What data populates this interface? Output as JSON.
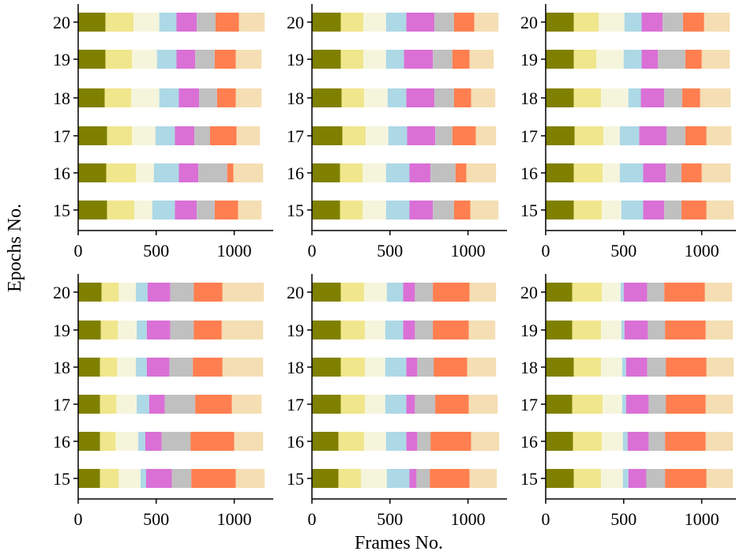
{
  "figure": {
    "xlabel": "Frames No.",
    "ylabel": "Epochs No."
  },
  "segment_colors": [
    "#808000",
    "#f0e68c",
    "#f5f5dc",
    "#add8e6",
    "#da70d6",
    "#c0c0c0",
    "#ff7f50",
    "#f5deb3"
  ],
  "chart_data": [
    {
      "type": "bar",
      "orientation": "horizontal",
      "stacked": true,
      "categories": [
        "15",
        "16",
        "17",
        "18",
        "19",
        "20"
      ],
      "xlim": [
        0,
        1250
      ],
      "xticks": [
        "0",
        "500",
        "1000"
      ],
      "segments": [
        [
          185,
          175,
          115,
          145,
          140,
          115,
          150,
          150
        ],
        [
          180,
          190,
          115,
          160,
          125,
          185,
          40,
          190
        ],
        [
          185,
          160,
          150,
          125,
          125,
          100,
          170,
          150
        ],
        [
          170,
          170,
          180,
          125,
          130,
          115,
          120,
          165
        ],
        [
          175,
          170,
          160,
          125,
          120,
          125,
          135,
          165
        ],
        [
          175,
          180,
          165,
          110,
          130,
          120,
          150,
          165
        ]
      ]
    },
    {
      "type": "bar",
      "orientation": "horizontal",
      "stacked": true,
      "categories": [
        "15",
        "16",
        "17",
        "18",
        "19",
        "20"
      ],
      "xlim": [
        0,
        1250
      ],
      "xticks": [
        "0",
        "500",
        "1000"
      ],
      "segments": [
        [
          180,
          145,
          150,
          150,
          150,
          135,
          105,
          180
        ],
        [
          180,
          145,
          150,
          150,
          135,
          160,
          70,
          190
        ],
        [
          195,
          150,
          145,
          120,
          180,
          110,
          150,
          130
        ],
        [
          190,
          145,
          150,
          120,
          180,
          125,
          110,
          155
        ],
        [
          185,
          145,
          145,
          115,
          185,
          125,
          110,
          155
        ],
        [
          185,
          145,
          145,
          130,
          180,
          125,
          130,
          155
        ]
      ]
    },
    {
      "type": "bar",
      "orientation": "horizontal",
      "stacked": true,
      "categories": [
        "15",
        "16",
        "17",
        "18",
        "19",
        "20"
      ],
      "xlim": [
        0,
        1250
      ],
      "xticks": [
        "0",
        "500",
        "1000"
      ],
      "segments": [
        [
          180,
          180,
          125,
          140,
          135,
          110,
          160,
          175
        ],
        [
          180,
          185,
          110,
          150,
          145,
          100,
          130,
          185
        ],
        [
          185,
          185,
          105,
          125,
          175,
          120,
          135,
          160
        ],
        [
          180,
          175,
          175,
          80,
          150,
          115,
          115,
          195
        ],
        [
          180,
          145,
          175,
          115,
          105,
          175,
          105,
          180
        ],
        [
          180,
          160,
          165,
          110,
          135,
          130,
          135,
          165
        ]
      ]
    },
    {
      "type": "bar",
      "orientation": "horizontal",
      "stacked": true,
      "categories": [
        "15",
        "16",
        "17",
        "18",
        "19",
        "20"
      ],
      "xlim": [
        0,
        1250
      ],
      "xticks": [
        "0",
        "500",
        "1000"
      ],
      "segments": [
        [
          140,
          120,
          140,
          35,
          165,
          125,
          285,
          185
        ],
        [
          140,
          100,
          145,
          45,
          105,
          185,
          280,
          185
        ],
        [
          140,
          105,
          130,
          80,
          100,
          195,
          235,
          190
        ],
        [
          140,
          110,
          120,
          70,
          145,
          150,
          190,
          260
        ],
        [
          145,
          110,
          120,
          65,
          150,
          150,
          180,
          265
        ],
        [
          150,
          110,
          110,
          75,
          145,
          150,
          185,
          265
        ]
      ]
    },
    {
      "type": "bar",
      "orientation": "horizontal",
      "stacked": true,
      "categories": [
        "15",
        "16",
        "17",
        "18",
        "19",
        "20"
      ],
      "xlim": [
        0,
        1250
      ],
      "xticks": [
        "0",
        "500",
        "1000"
      ],
      "segments": [
        [
          170,
          145,
          165,
          145,
          45,
          85,
          255,
          175
        ],
        [
          170,
          165,
          140,
          130,
          70,
          85,
          260,
          180
        ],
        [
          185,
          155,
          130,
          135,
          55,
          130,
          215,
          185
        ],
        [
          185,
          155,
          130,
          135,
          70,
          105,
          215,
          185
        ],
        [
          185,
          155,
          130,
          115,
          75,
          115,
          230,
          170
        ],
        [
          185,
          150,
          145,
          105,
          75,
          115,
          235,
          170
        ]
      ]
    },
    {
      "type": "bar",
      "orientation": "horizontal",
      "stacked": true,
      "categories": [
        "15",
        "16",
        "17",
        "18",
        "19",
        "20"
      ],
      "xlim": [
        0,
        1250
      ],
      "xticks": [
        "0",
        "500",
        "1000"
      ],
      "segments": [
        [
          180,
          175,
          140,
          35,
          115,
          120,
          265,
          170
        ],
        [
          175,
          185,
          135,
          30,
          135,
          105,
          260,
          175
        ],
        [
          170,
          195,
          125,
          25,
          145,
          110,
          255,
          175
        ],
        [
          180,
          175,
          135,
          25,
          135,
          120,
          260,
          175
        ],
        [
          170,
          185,
          130,
          20,
          150,
          110,
          260,
          175
        ],
        [
          170,
          190,
          120,
          20,
          150,
          110,
          260,
          175
        ]
      ]
    }
  ]
}
